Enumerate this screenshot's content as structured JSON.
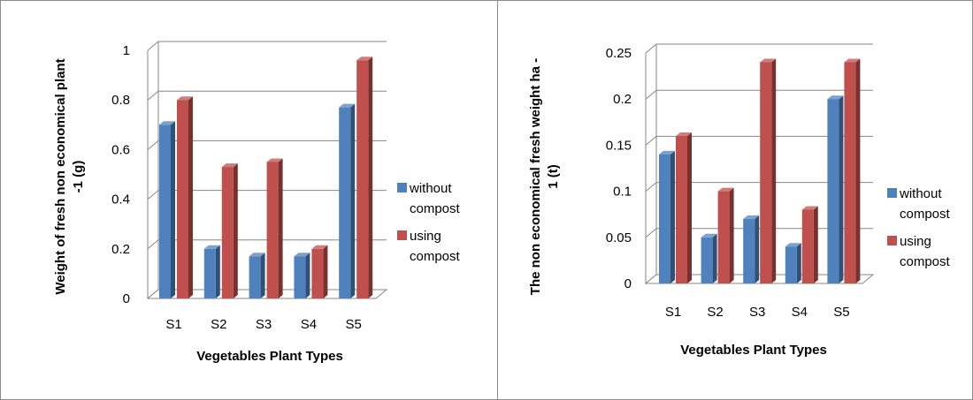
{
  "chart_data": [
    {
      "type": "bar",
      "categories": [
        "S1",
        "S2",
        "S3",
        "S4",
        "S5"
      ],
      "series": [
        {
          "name": "without compost",
          "values": [
            0.7,
            0.2,
            0.17,
            0.17,
            0.77
          ],
          "color": "#4F81BD"
        },
        {
          "name": "using compost",
          "values": [
            0.8,
            0.53,
            0.55,
            0.2,
            0.96
          ],
          "color": "#C0504D"
        }
      ],
      "xlabel": "Vegetables Plant Types",
      "ylabel_lines": [
        "Weight of fresh non economical plant",
        "-1 (g)"
      ],
      "ylim": [
        0,
        1
      ],
      "yticks": [
        0,
        0.2,
        0.4,
        0.6,
        0.8,
        1
      ],
      "ytick_labels": [
        "0",
        "0.2",
        "0.4",
        "0.6",
        "0.8",
        "1"
      ],
      "legend": [
        {
          "lines": [
            "without",
            "compost"
          ],
          "color": "#4F81BD"
        },
        {
          "lines": [
            "using",
            "compost"
          ],
          "color": "#C0504D"
        }
      ],
      "legend_position": "right",
      "grid": true
    },
    {
      "type": "bar",
      "categories": [
        "S1",
        "S2",
        "S3",
        "S4",
        "S5"
      ],
      "series": [
        {
          "name": "without compost",
          "values": [
            0.14,
            0.05,
            0.07,
            0.04,
            0.2
          ],
          "color": "#4F81BD"
        },
        {
          "name": "using compost",
          "values": [
            0.16,
            0.1,
            0.24,
            0.08,
            0.24
          ],
          "color": "#C0504D"
        }
      ],
      "xlabel": "Vegetables Plant Types",
      "ylabel_lines": [
        "The non economical fresh weight ha -",
        "1 (t)"
      ],
      "ylim": [
        0,
        0.25
      ],
      "yticks": [
        0,
        0.05,
        0.1,
        0.15,
        0.2,
        0.25
      ],
      "ytick_labels": [
        "0",
        "0.05",
        "0.1",
        "0.15",
        "0.2",
        "0.25"
      ],
      "legend": [
        {
          "lines": [
            "without",
            "compost"
          ],
          "color": "#4F81BD"
        },
        {
          "lines": [
            "using",
            "compost"
          ],
          "color": "#C0504D"
        }
      ],
      "legend_position": "right",
      "grid": true
    }
  ]
}
